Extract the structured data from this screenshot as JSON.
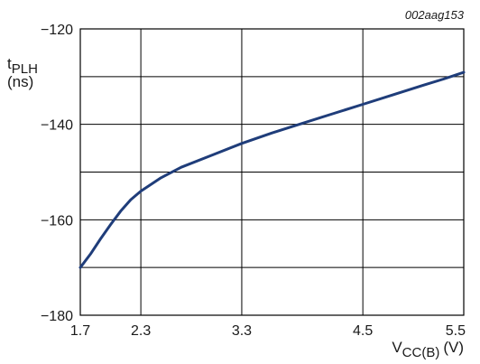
{
  "chart_data": {
    "type": "line",
    "figure_id": "002aag153",
    "ylabel": {
      "main": "t",
      "sub": "PLH",
      "unit": "(ns)"
    },
    "xlabel": {
      "main": "V",
      "sub": "CC(B)",
      "unit": "(V)"
    },
    "xlim": [
      1.7,
      5.5
    ],
    "ylim": [
      -180,
      -120
    ],
    "x_ticks": [
      1.7,
      2.3,
      3.3,
      4.5,
      5.5
    ],
    "x_tick_labels": [
      "1.7",
      "2.3",
      "3.3",
      "4.5",
      "5.5"
    ],
    "y_ticks": [
      -120,
      -140,
      -160,
      -180
    ],
    "y_tick_labels": [
      "−120",
      "−140",
      "−160",
      "−180"
    ],
    "grid": true,
    "series_color": "#1f3d7a",
    "series": [
      {
        "x": [
          1.7,
          1.8,
          1.9,
          2.0,
          2.1,
          2.2,
          2.3,
          2.5,
          2.7,
          3.0,
          3.3,
          3.6,
          3.9,
          4.2,
          4.5,
          4.8,
          5.1,
          5.3,
          5.5
        ],
        "y": [
          -170.0,
          -167.2,
          -164.0,
          -161.0,
          -158.2,
          -155.8,
          -154.0,
          -151.2,
          -149.0,
          -146.5,
          -144.0,
          -141.8,
          -139.8,
          -137.8,
          -135.8,
          -133.8,
          -131.8,
          -130.5,
          -129.1
        ]
      }
    ]
  }
}
